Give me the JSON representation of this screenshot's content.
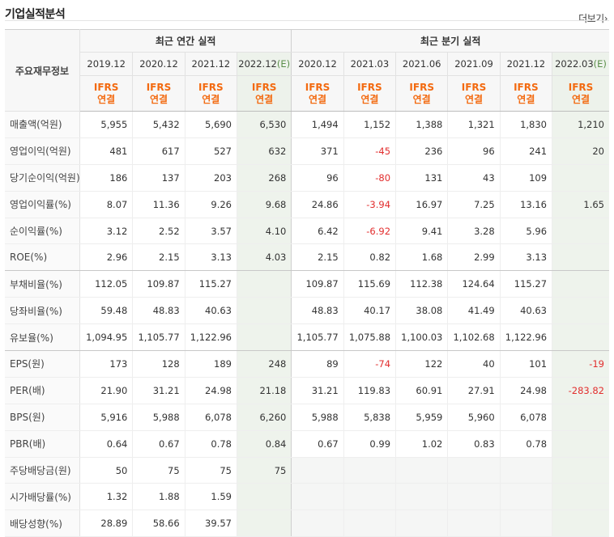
{
  "header": {
    "title": "기업실적분석",
    "more_label": "더보기"
  },
  "table": {
    "corner_label": "주요재무정보",
    "groups": {
      "annual": "최근 연간 실적",
      "quarterly": "최근 분기 실적"
    },
    "periods": [
      {
        "label": "2019.12",
        "est": false
      },
      {
        "label": "2020.12",
        "est": false
      },
      {
        "label": "2021.12",
        "est": false
      },
      {
        "label": "2022.12",
        "est": true,
        "est_mark": "(E)"
      },
      {
        "label": "2020.12",
        "est": false
      },
      {
        "label": "2021.03",
        "est": false
      },
      {
        "label": "2021.06",
        "est": false
      },
      {
        "label": "2021.09",
        "est": false
      },
      {
        "label": "2021.12",
        "est": false
      },
      {
        "label": "2022.03",
        "est": true,
        "est_mark": "(E)"
      }
    ],
    "ifrs": {
      "line1": "IFRS",
      "line2": "연결"
    },
    "rows": [
      {
        "label": "매출액(억원)",
        "values": [
          "5,955",
          "5,432",
          "5,690",
          "6,530",
          "1,494",
          "1,152",
          "1,388",
          "1,321",
          "1,830",
          "1,210"
        ]
      },
      {
        "label": "영업이익(억원)",
        "values": [
          "481",
          "617",
          "527",
          "632",
          "371",
          "-45",
          "236",
          "96",
          "241",
          "20"
        ]
      },
      {
        "label": "당기순이익(억원)",
        "values": [
          "186",
          "137",
          "203",
          "268",
          "96",
          "-80",
          "131",
          "43",
          "109",
          ""
        ]
      },
      {
        "label": "영업이익률(%)",
        "values": [
          "8.07",
          "11.36",
          "9.26",
          "9.68",
          "24.86",
          "-3.94",
          "16.97",
          "7.25",
          "13.16",
          "1.65"
        ]
      },
      {
        "label": "순이익률(%)",
        "values": [
          "3.12",
          "2.52",
          "3.57",
          "4.10",
          "6.42",
          "-6.92",
          "9.41",
          "3.28",
          "5.96",
          ""
        ]
      },
      {
        "label": "ROE(%)",
        "values": [
          "2.96",
          "2.15",
          "3.13",
          "4.03",
          "2.15",
          "0.82",
          "1.68",
          "2.99",
          "3.13",
          ""
        ]
      },
      {
        "label": "부채비율(%)",
        "values": [
          "112.05",
          "109.87",
          "115.27",
          "",
          "109.87",
          "115.69",
          "112.38",
          "124.64",
          "115.27",
          ""
        ]
      },
      {
        "label": "당좌비율(%)",
        "values": [
          "59.48",
          "48.83",
          "40.63",
          "",
          "48.83",
          "40.17",
          "38.08",
          "41.49",
          "40.63",
          ""
        ]
      },
      {
        "label": "유보율(%)",
        "values": [
          "1,094.95",
          "1,105.77",
          "1,122.96",
          "",
          "1,105.77",
          "1,075.88",
          "1,100.03",
          "1,102.68",
          "1,122.96",
          ""
        ]
      },
      {
        "label": "EPS(원)",
        "values": [
          "173",
          "128",
          "189",
          "248",
          "89",
          "-74",
          "122",
          "40",
          "101",
          "-19"
        ]
      },
      {
        "label": "PER(배)",
        "values": [
          "21.90",
          "31.21",
          "24.98",
          "21.18",
          "31.21",
          "119.83",
          "60.91",
          "27.91",
          "24.98",
          "-283.82"
        ]
      },
      {
        "label": "BPS(원)",
        "values": [
          "5,916",
          "5,988",
          "6,078",
          "6,260",
          "5,988",
          "5,838",
          "5,959",
          "5,960",
          "6,078",
          ""
        ]
      },
      {
        "label": "PBR(배)",
        "values": [
          "0.64",
          "0.67",
          "0.78",
          "0.84",
          "0.67",
          "0.99",
          "1.02",
          "0.83",
          "0.78",
          ""
        ]
      },
      {
        "label": "주당배당금(원)",
        "values": [
          "50",
          "75",
          "75",
          "75",
          "",
          "",
          "",
          "",
          "",
          ""
        ]
      },
      {
        "label": "시가배당률(%)",
        "values": [
          "1.32",
          "1.88",
          "1.59",
          "",
          "",
          "",
          "",
          "",
          "",
          ""
        ]
      },
      {
        "label": "배당성향(%)",
        "values": [
          "28.89",
          "58.66",
          "39.57",
          "",
          "",
          "",
          "",
          "",
          "",
          ""
        ]
      }
    ]
  },
  "colors": {
    "ifrs_orange": "#f36a10",
    "negative_red": "#e22e2e",
    "estimate_bg": "#eef3ec",
    "estimate_mark": "#5a8f4a"
  }
}
